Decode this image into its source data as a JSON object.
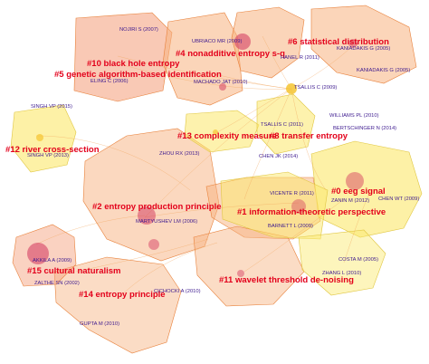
{
  "colors": {
    "cluster_red": "#e3001b",
    "author_purple": "#3d1a8f",
    "fill_orange": "#f7b27f",
    "fill_yellow": "#fbe86a",
    "edge_orange": "#f2a55b",
    "node_magenta": "#d2335c"
  },
  "clusters": [
    {
      "id": "c0",
      "label": "#0 eeg signal"
    },
    {
      "id": "c1",
      "label": "#1 information-theoretic perspective"
    },
    {
      "id": "c2",
      "label": "#2 entropy production principle"
    },
    {
      "id": "c4",
      "label": "#4 nonadditive entropy s-q"
    },
    {
      "id": "c5",
      "label": "#5 genetic algorithm-based identification"
    },
    {
      "id": "c6",
      "label": "#6 statistical distribution"
    },
    {
      "id": "c8",
      "label": "#8 transfer entropy"
    },
    {
      "id": "c10",
      "label": "#10 black hole entropy"
    },
    {
      "id": "c11",
      "label": "#11 wavelet threshold de-noising"
    },
    {
      "id": "c12",
      "label": "#12 river cross-section"
    },
    {
      "id": "c13",
      "label": "#13 complexity measure"
    },
    {
      "id": "c14",
      "label": "#14 entropy principle"
    },
    {
      "id": "c15",
      "label": "#15 cultural naturalism"
    }
  ],
  "authors": [
    {
      "id": "a01",
      "label": "NOJIRI S (2007)"
    },
    {
      "id": "a02",
      "label": "UBRIACO MR (2009)"
    },
    {
      "id": "a03",
      "label": "HANEL R (2011)"
    },
    {
      "id": "a04",
      "label": "KANIADAKIS G (2005)"
    },
    {
      "id": "a05",
      "label": "KANIADAKIS G (2005)"
    },
    {
      "id": "a06",
      "label": "ELING C (2006)"
    },
    {
      "id": "a07",
      "label": "MACHADO JAT (2010)"
    },
    {
      "id": "a08",
      "label": "TSALLIS C (2009)"
    },
    {
      "id": "a09",
      "label": "SINGH VP (2015)"
    },
    {
      "id": "a10",
      "label": "WILLIAMS PL (2010)"
    },
    {
      "id": "a11",
      "label": "TSALLIS C (2011)"
    },
    {
      "id": "a12",
      "label": "BERTSCHINGER N (2014)"
    },
    {
      "id": "a13",
      "label": "SINGH VP (2013)"
    },
    {
      "id": "a14",
      "label": "ZHOU RX (2013)"
    },
    {
      "id": "a15",
      "label": "CHEN JK (2014)"
    },
    {
      "id": "a16",
      "label": "VICENTE R (2011)"
    },
    {
      "id": "a17",
      "label": "ZANIN M (2012)"
    },
    {
      "id": "a18",
      "label": "CHEN WT (2009)"
    },
    {
      "id": "a19",
      "label": "MARTYUSHEV LM (2006)"
    },
    {
      "id": "a20",
      "label": "BARNETT L (2009)"
    },
    {
      "id": "a21",
      "label": "AKKILA A (2009)"
    },
    {
      "id": "a22",
      "label": "COSTA M (2005)"
    },
    {
      "id": "a23",
      "label": "ZHANG L (2010)"
    },
    {
      "id": "a24",
      "label": "ZALTHE SN (2002)"
    },
    {
      "id": "a25",
      "label": "CICHOCKI A (2010)"
    },
    {
      "id": "a26",
      "label": "GUPTA M (2010)"
    }
  ]
}
